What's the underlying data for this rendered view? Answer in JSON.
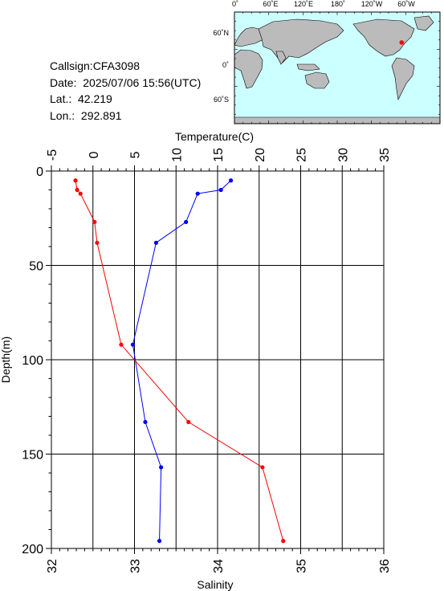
{
  "info": {
    "callsign": "Callsign:CFA3098",
    "date": "Date:  2025/07/06 15:56(UTC)",
    "lat": "Lat.:  42.219",
    "lon": "Lon.:  292.891"
  },
  "map": {
    "top_ticks": [
      "0˚",
      "60˚E",
      "120˚E",
      "180˚",
      "120˚W",
      "60˚W"
    ],
    "left_ticks": [
      "60˚N",
      "0˚",
      "60˚S"
    ],
    "station": {
      "lat": 42.219,
      "lon": 292.891
    },
    "colors": {
      "ocean": "#ccffff",
      "land": "#bbbbbb",
      "station": "#ff0000"
    }
  },
  "chart_data": {
    "type": "line",
    "ylabel": "Depth(m)",
    "ylim": [
      200,
      0
    ],
    "yticks": [
      0,
      50,
      100,
      150,
      200
    ],
    "top_axis": {
      "label": "Temperature(C)",
      "lim": [
        -5,
        35
      ],
      "ticks": [
        -5,
        0,
        5,
        10,
        15,
        20,
        25,
        30,
        35
      ]
    },
    "bottom_axis": {
      "label": "Salinity",
      "lim": [
        32,
        36
      ],
      "ticks": [
        32,
        33,
        34,
        35,
        36
      ]
    },
    "series": [
      {
        "axis": "temperature",
        "color": "#0000ff",
        "points": [
          {
            "x": 16.6,
            "y": 5
          },
          {
            "x": 15.4,
            "y": 10
          },
          {
            "x": 12.6,
            "y": 12
          },
          {
            "x": 11.2,
            "y": 27
          },
          {
            "x": 7.6,
            "y": 38
          },
          {
            "x": 4.8,
            "y": 92
          },
          {
            "x": 6.3,
            "y": 133
          },
          {
            "x": 8.2,
            "y": 157
          },
          {
            "x": 8.0,
            "y": 196
          }
        ]
      },
      {
        "axis": "salinity",
        "color": "#ff0000",
        "points": [
          {
            "x": 32.29,
            "y": 5
          },
          {
            "x": 32.31,
            "y": 10
          },
          {
            "x": 32.35,
            "y": 12
          },
          {
            "x": 32.52,
            "y": 27
          },
          {
            "x": 32.55,
            "y": 38
          },
          {
            "x": 32.84,
            "y": 92
          },
          {
            "x": 33.65,
            "y": 133
          },
          {
            "x": 34.54,
            "y": 157
          },
          {
            "x": 34.79,
            "y": 196
          }
        ]
      }
    ]
  }
}
